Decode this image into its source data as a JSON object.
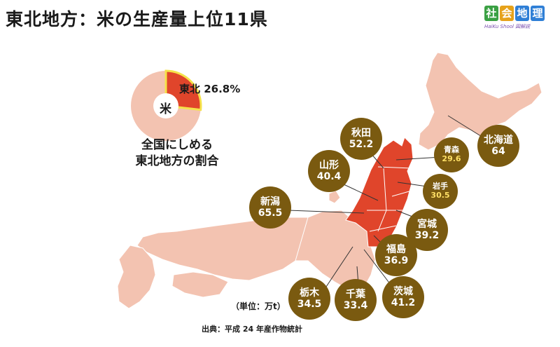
{
  "title": "東北地方：米の生産量上位11県",
  "logo": {
    "tiles": [
      "社",
      "会",
      "地",
      "理"
    ],
    "tile_colors": [
      "#3aa043",
      "#e6a21a",
      "#2f7fd6",
      "#2f7fd6"
    ],
    "subtitle": "HaiKu Shool 図解説"
  },
  "pie": {
    "center_label": "米",
    "slice_label": "東北 26.8%",
    "slice_percent": 26.8,
    "caption_line1": "全国にしめる",
    "caption_line2": "東北地方の割合",
    "colors": {
      "tohoku": "#e0452b",
      "rest": "#f3c3b1",
      "border": "#f5e24a"
    }
  },
  "map_colors": {
    "tohoku": "#e0452b",
    "other": "#f3c3b1",
    "border": "#ffffff",
    "lines": "#333333",
    "bubble": "#7a5a10"
  },
  "prefectures": [
    {
      "name": "北海道",
      "value": "64"
    },
    {
      "name": "秋田",
      "value": "52.2"
    },
    {
      "name": "青森",
      "value": "29.6"
    },
    {
      "name": "山形",
      "value": "40.4"
    },
    {
      "name": "岩手",
      "value": "30.5"
    },
    {
      "name": "新潟",
      "value": "65.5"
    },
    {
      "name": "宮城",
      "value": "39.2"
    },
    {
      "name": "福島",
      "value": "36.9"
    },
    {
      "name": "栃木",
      "value": "34.5"
    },
    {
      "name": "千葉",
      "value": "33.4"
    },
    {
      "name": "茨城",
      "value": "41.2"
    }
  ],
  "unit_note": "（単位：万t）",
  "source_note": "出典：平成 24 年産作物統計"
}
